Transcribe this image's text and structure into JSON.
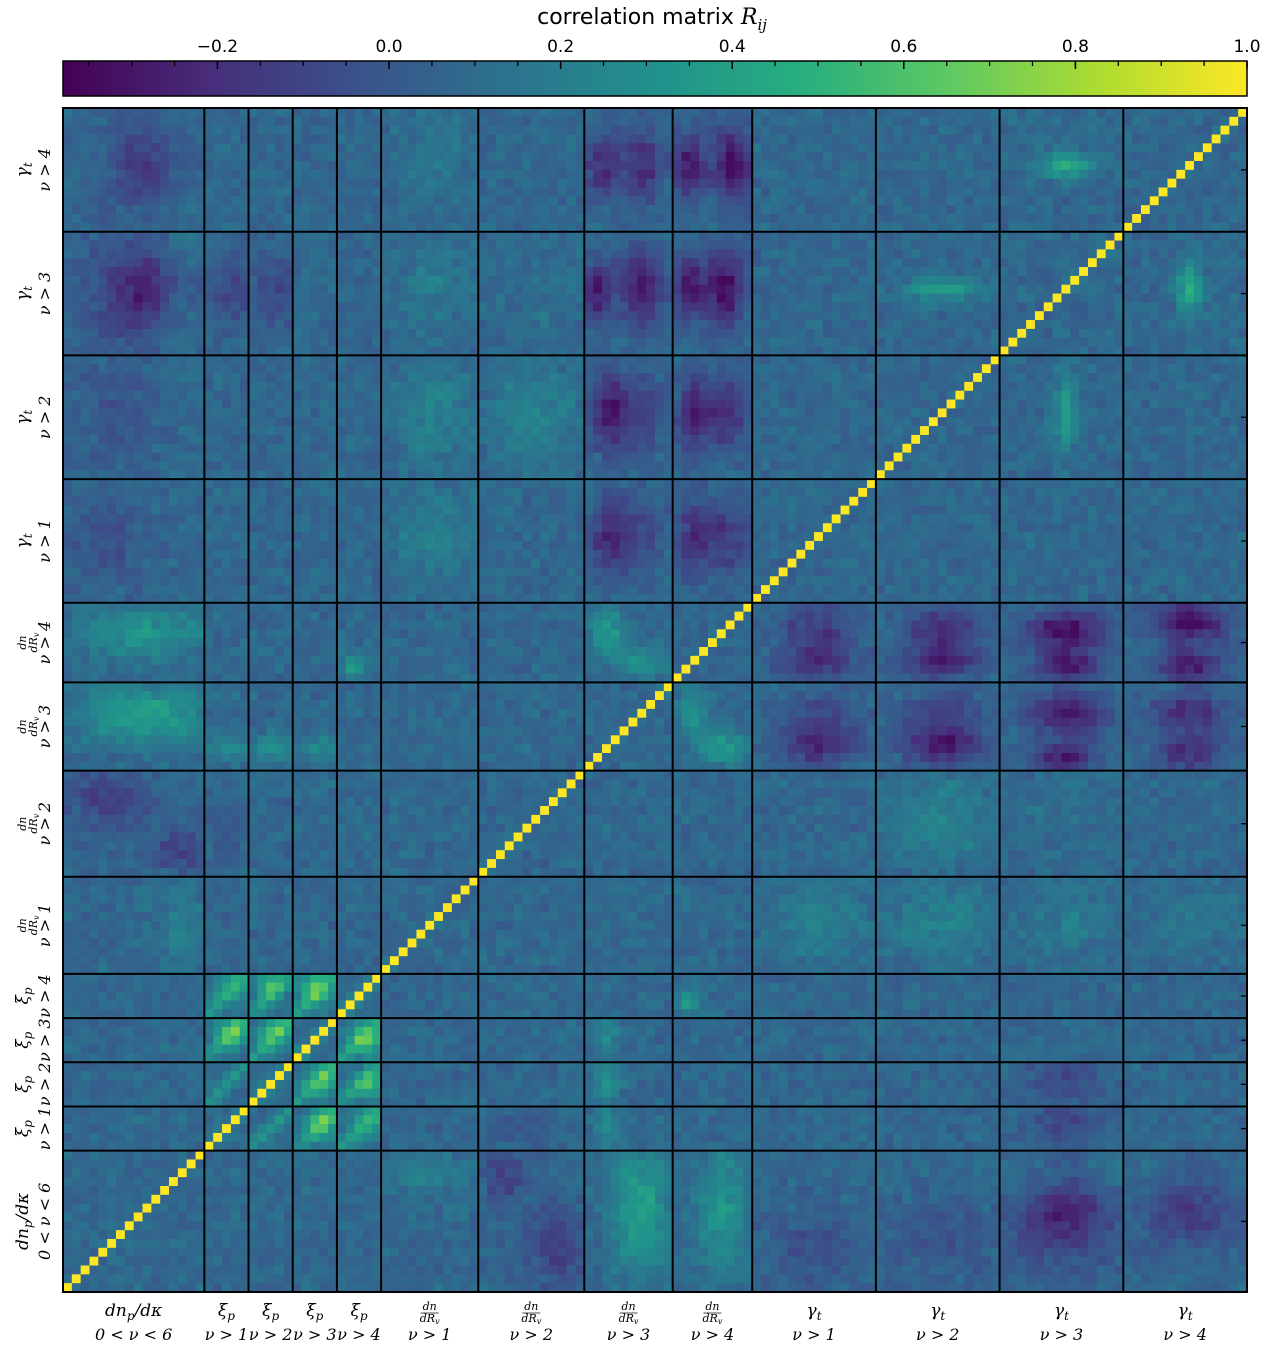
{
  "colors": {
    "cmap": [
      "#440154",
      "#472d7b",
      "#3b528b",
      "#2c728e",
      "#21918c",
      "#28ae80",
      "#5ec962",
      "#addc30",
      "#fde725"
    ],
    "grid_line": "#000000",
    "background": "#ffffff"
  },
  "chart_data": {
    "type": "heatmap",
    "title": "correlation matrix R_ij",
    "colorbar": {
      "label_main": "correlation matrix ",
      "label_var": "R",
      "label_sub": "ij",
      "range": [
        -0.38,
        1.0
      ],
      "ticks": [
        -0.2,
        0.0,
        0.2,
        0.4,
        0.6,
        0.8,
        1.0
      ],
      "tick_labels": [
        "−0.2",
        "0.0",
        "0.2",
        "0.4",
        "0.6",
        "0.8",
        "1.0"
      ],
      "placement": "top"
    },
    "background_value": 0.08,
    "diagonal_value": 1.0,
    "blocks": [
      {
        "stat": "dn_p/dκ",
        "cond": "0 < ν < 6",
        "size": 16
      },
      {
        "stat": "ξ_p",
        "cond": "ν > 1",
        "size": 5
      },
      {
        "stat": "ξ_p",
        "cond": "ν > 2",
        "size": 5
      },
      {
        "stat": "ξ_p",
        "cond": "ν > 3",
        "size": 5
      },
      {
        "stat": "ξ_p",
        "cond": "ν > 4",
        "size": 5
      },
      {
        "stat": "dn/dR_v",
        "cond": "ν > 1",
        "size": 11
      },
      {
        "stat": "dn/dR_v",
        "cond": "ν > 2",
        "size": 12
      },
      {
        "stat": "dn/dR_v",
        "cond": "ν > 3",
        "size": 10
      },
      {
        "stat": "dn/dR_v",
        "cond": "ν > 4",
        "size": 9
      },
      {
        "stat": "γ_t",
        "cond": "ν > 1",
        "size": 14
      },
      {
        "stat": "γ_t",
        "cond": "ν > 2",
        "size": 14
      },
      {
        "stat": "γ_t",
        "cond": "ν > 3",
        "size": 14
      },
      {
        "stat": "γ_t",
        "cond": "ν > 4",
        "size": 14
      }
    ],
    "x_labels": [
      {
        "line1": "dn_p/dκ",
        "line2": "0 < ν < 6"
      },
      {
        "line1": "ξ_p",
        "line2": "ν > 1"
      },
      {
        "line1": "ξ_p",
        "line2": "ν > 2"
      },
      {
        "line1": "ξ_p",
        "line2": "ν > 3"
      },
      {
        "line1": "ξ_p",
        "line2": "ν > 4"
      },
      {
        "line1": "dn/dR_v",
        "line2": "ν > 1"
      },
      {
        "line1": "dn/dR_v",
        "line2": "ν > 2"
      },
      {
        "line1": "dn/dR_v",
        "line2": "ν > 3"
      },
      {
        "line1": "dn/dR_v",
        "line2": "ν > 4"
      },
      {
        "line1": "γ_t",
        "line2": "ν > 1"
      },
      {
        "line1": "γ_t",
        "line2": "ν > 2"
      },
      {
        "line1": "γ_t",
        "line2": "ν > 3"
      },
      {
        "line1": "γ_t",
        "line2": "ν > 4"
      }
    ],
    "features": [
      {
        "rb": 0,
        "cb": 9,
        "rr": 0.3,
        "cr": 0.5,
        "rs": 0.25,
        "cs": 0.4,
        "v": -0.05
      },
      {
        "rb": 0,
        "cb": 10,
        "rr": 0.3,
        "cr": 0.5,
        "rs": 0.25,
        "cs": 0.4,
        "v": -0.12
      },
      {
        "rb": 0,
        "cb": 11,
        "rr": 0.35,
        "cr": 0.5,
        "rs": 0.3,
        "cs": 0.4,
        "v": -0.2
      },
      {
        "rb": 0,
        "cb": 12,
        "rr": 0.35,
        "cr": 0.5,
        "rs": 0.3,
        "cs": 0.4,
        "v": -0.1
      },
      {
        "rb": 0,
        "cb": 11,
        "rr": 0.8,
        "cr": 0.5,
        "rs": 0.15,
        "cs": 0.4,
        "v": 0.25
      },
      {
        "rb": 0,
        "cb": 12,
        "rr": 0.8,
        "cr": 0.5,
        "rs": 0.15,
        "cs": 0.4,
        "v": 0.18
      },
      {
        "rb": 0,
        "cb": 5,
        "rr": 0.8,
        "cr": 0.4,
        "rs": 0.15,
        "cs": 0.4,
        "v": 0.22
      },
      {
        "rb": 0,
        "cb": 7,
        "rr": 0.6,
        "cr": 0.5,
        "rs": 0.5,
        "cs": 0.3,
        "v": 0.28
      },
      {
        "rb": 0,
        "cb": 8,
        "rr": 0.6,
        "cr": 0.5,
        "rs": 0.5,
        "cs": 0.3,
        "v": 0.18
      },
      {
        "rb": 0,
        "cb": 6,
        "rr": 0.8,
        "cr": 0.2,
        "rs": 0.2,
        "cs": 0.2,
        "v": -0.12
      },
      {
        "rb": 1,
        "cb": 3,
        "rr": 0.5,
        "cr": 0.6,
        "rs": 0.4,
        "cs": 0.4,
        "v": 0.5
      },
      {
        "rb": 2,
        "cb": 3,
        "rr": 0.5,
        "cr": 0.6,
        "rs": 0.4,
        "cs": 0.4,
        "v": 0.5
      },
      {
        "rb": 2,
        "cb": 4,
        "rr": 0.4,
        "cr": 0.6,
        "rs": 0.4,
        "cs": 0.4,
        "v": 0.45
      },
      {
        "rb": 3,
        "cb": 4,
        "rr": 0.4,
        "cr": 0.6,
        "rs": 0.4,
        "cs": 0.4,
        "v": 0.55
      },
      {
        "rb": 1,
        "cb": 4,
        "rr": 0.5,
        "cr": 0.6,
        "rs": 0.4,
        "cs": 0.4,
        "v": 0.35
      },
      {
        "rb": 1,
        "cb": 7,
        "rr": 0.5,
        "cr": 0.2,
        "rs": 0.5,
        "cs": 0.15,
        "v": 0.3
      },
      {
        "rb": 2,
        "cb": 7,
        "rr": 0.5,
        "cr": 0.2,
        "rs": 0.5,
        "cs": 0.15,
        "v": 0.3
      },
      {
        "rb": 3,
        "cb": 7,
        "rr": 0.5,
        "cr": 0.2,
        "rs": 0.5,
        "cs": 0.15,
        "v": 0.25
      },
      {
        "rb": 4,
        "cb": 8,
        "rr": 0.3,
        "cr": 0.15,
        "rs": 0.3,
        "cs": 0.15,
        "v": 0.35
      },
      {
        "rb": 1,
        "cb": 6,
        "rr": 0.5,
        "cr": 0.4,
        "rs": 0.5,
        "cs": 0.3,
        "v": -0.02
      },
      {
        "rb": 1,
        "cb": 11,
        "rr": 0.5,
        "cr": 0.5,
        "rs": 0.5,
        "cs": 0.3,
        "v": -0.08
      },
      {
        "rb": 2,
        "cb": 11,
        "rr": 0.5,
        "cr": 0.5,
        "rs": 0.5,
        "cs": 0.3,
        "v": -0.08
      },
      {
        "rb": 5,
        "cb": 9,
        "rr": 0.5,
        "cr": 0.5,
        "rs": 0.4,
        "cs": 0.4,
        "v": 0.2
      },
      {
        "rb": 5,
        "cb": 10,
        "rr": 0.5,
        "cr": 0.5,
        "rs": 0.4,
        "cs": 0.4,
        "v": 0.22
      },
      {
        "rb": 5,
        "cb": 11,
        "rr": 0.5,
        "cr": 0.5,
        "rs": 0.4,
        "cs": 0.4,
        "v": 0.18
      },
      {
        "rb": 5,
        "cb": 12,
        "rr": 0.5,
        "cr": 0.5,
        "rs": 0.4,
        "cs": 0.4,
        "v": 0.15
      },
      {
        "rb": 6,
        "cb": 10,
        "rr": 0.5,
        "cr": 0.5,
        "rs": 0.4,
        "cs": 0.4,
        "v": 0.22
      },
      {
        "rb": 6,
        "cb": 11,
        "rr": 0.5,
        "cr": 0.5,
        "rs": 0.4,
        "cs": 0.4,
        "v": 0.12
      },
      {
        "rb": 7,
        "cb": 9,
        "rr": 0.5,
        "cr": 0.5,
        "rs": 0.3,
        "cs": 0.3,
        "v": -0.12
      },
      {
        "rb": 7,
        "cb": 10,
        "rr": 0.5,
        "cr": 0.5,
        "rs": 0.3,
        "cs": 0.3,
        "v": -0.15
      },
      {
        "rb": 7,
        "cb": 11,
        "rr": 0.6,
        "cr": 0.5,
        "rs": 0.25,
        "cs": 0.3,
        "v": -0.28
      },
      {
        "rb": 7,
        "cb": 12,
        "rr": 0.6,
        "cr": 0.5,
        "rs": 0.25,
        "cs": 0.3,
        "v": -0.22
      },
      {
        "rb": 8,
        "cb": 9,
        "rr": 0.6,
        "cr": 0.5,
        "rs": 0.3,
        "cs": 0.3,
        "v": -0.15
      },
      {
        "rb": 8,
        "cb": 10,
        "rr": 0.6,
        "cr": 0.5,
        "rs": 0.3,
        "cs": 0.3,
        "v": -0.2
      },
      {
        "rb": 8,
        "cb": 11,
        "rr": 0.6,
        "cr": 0.5,
        "rs": 0.25,
        "cs": 0.3,
        "v": -0.32
      },
      {
        "rb": 8,
        "cb": 12,
        "rr": 0.7,
        "cr": 0.5,
        "rs": 0.25,
        "cs": 0.3,
        "v": -0.35
      },
      {
        "rb": 8,
        "cb": 0,
        "rr": 0.6,
        "cr": 0.5,
        "rs": 0.3,
        "cs": 0.4,
        "v": 0.25
      },
      {
        "rb": 7,
        "cb": 0,
        "rr": 0.7,
        "cr": 0.5,
        "rs": 0.3,
        "cs": 0.4,
        "v": 0.22
      },
      {
        "rb": 6,
        "cb": 0,
        "rr": 0.7,
        "cr": 0.3,
        "rs": 0.3,
        "cs": 0.3,
        "v": -0.12
      },
      {
        "rb": 8,
        "cb": 7,
        "rr": 0.6,
        "cr": 0.2,
        "rs": 0.3,
        "cs": 0.2,
        "v": 0.35
      },
      {
        "rb": 7,
        "cb": 8,
        "rr": 0.6,
        "cr": 0.2,
        "rs": 0.3,
        "cs": 0.2,
        "v": 0.3
      },
      {
        "rb": 9,
        "cb": 7,
        "rr": 0.5,
        "cr": 0.2,
        "rs": 0.3,
        "cs": 0.2,
        "v": -0.15
      },
      {
        "rb": 9,
        "cb": 8,
        "rr": 0.5,
        "cr": 0.2,
        "rs": 0.3,
        "cs": 0.2,
        "v": -0.18
      },
      {
        "rb": 10,
        "cb": 7,
        "rr": 0.5,
        "cr": 0.2,
        "rs": 0.3,
        "cs": 0.2,
        "v": -0.2
      },
      {
        "rb": 10,
        "cb": 8,
        "rr": 0.5,
        "cr": 0.2,
        "rs": 0.3,
        "cs": 0.2,
        "v": -0.2
      },
      {
        "rb": 11,
        "cb": 7,
        "rr": 0.5,
        "cr": 0.1,
        "rs": 0.25,
        "cs": 0.15,
        "v": -0.3
      },
      {
        "rb": 11,
        "cb": 8,
        "rr": 0.5,
        "cr": 0.15,
        "rs": 0.25,
        "cs": 0.2,
        "v": -0.3
      },
      {
        "rb": 12,
        "cb": 7,
        "rr": 0.5,
        "cr": 0.15,
        "rs": 0.25,
        "cs": 0.2,
        "v": -0.2
      },
      {
        "rb": 12,
        "cb": 8,
        "rr": 0.5,
        "cr": 0.15,
        "rs": 0.25,
        "cs": 0.2,
        "v": -0.28
      },
      {
        "rb": 11,
        "cb": 12,
        "rr": 0.5,
        "cr": 0.5,
        "rs": 0.15,
        "cs": 0.1,
        "v": 0.3
      },
      {
        "rb": 12,
        "cb": 11,
        "rr": 0.5,
        "cr": 0.5,
        "rs": 0.1,
        "cs": 0.3,
        "v": 0.25
      },
      {
        "rb": 10,
        "cb": 11,
        "rr": 0.5,
        "cr": 0.5,
        "rs": 0.3,
        "cs": 0.1,
        "v": 0.25
      },
      {
        "rb": 11,
        "cb": 10,
        "rr": 0.5,
        "cr": 0.5,
        "rs": 0.1,
        "cs": 0.3,
        "v": 0.2
      },
      {
        "rb": 11,
        "cb": 0,
        "rr": 0.5,
        "cr": 0.25,
        "rs": 0.3,
        "cs": 0.2,
        "v": 0.22
      },
      {
        "rb": 12,
        "cb": 0,
        "rr": 0.5,
        "cr": 0.25,
        "rs": 0.3,
        "cs": 0.2,
        "v": 0.2
      },
      {
        "rb": 11,
        "cb": 0,
        "rr": 0.5,
        "cr": 0.7,
        "rs": 0.3,
        "cs": 0.3,
        "v": -0.15
      },
      {
        "rb": 12,
        "cb": 0,
        "rr": 0.5,
        "cr": 0.7,
        "rs": 0.3,
        "cs": 0.3,
        "v": -0.1
      },
      {
        "rb": 10,
        "cb": 0,
        "rr": 0.5,
        "cr": 0.25,
        "rs": 0.3,
        "cs": 0.2,
        "v": 0.2
      }
    ]
  },
  "y_labels": [
    {
      "line1": "dn_p/dκ",
      "line2": "0 < ν < 6"
    },
    {
      "line1": "ξ_p",
      "line2": "ν > 1"
    },
    {
      "line1": "ξ_p",
      "line2": "ν > 2"
    },
    {
      "line1": "ξ_p",
      "line2": "ν > 3"
    },
    {
      "line1": "ξ_p",
      "line2": "ν > 4"
    },
    {
      "line1": "dn/dR_v",
      "line2": "ν > 1"
    },
    {
      "line1": "dn/dR_v",
      "line2": "ν > 2"
    },
    {
      "line1": "dn/dR_v",
      "line2": "ν > 3"
    },
    {
      "line1": "dn/dR_v",
      "line2": "ν > 4"
    },
    {
      "line1": "γ_t",
      "line2": "ν > 1"
    },
    {
      "line1": "γ_t",
      "line2": "ν > 2"
    },
    {
      "line1": "γ_t",
      "line2": "ν > 3"
    },
    {
      "line1": "γ_t",
      "line2": "ν > 4"
    }
  ]
}
